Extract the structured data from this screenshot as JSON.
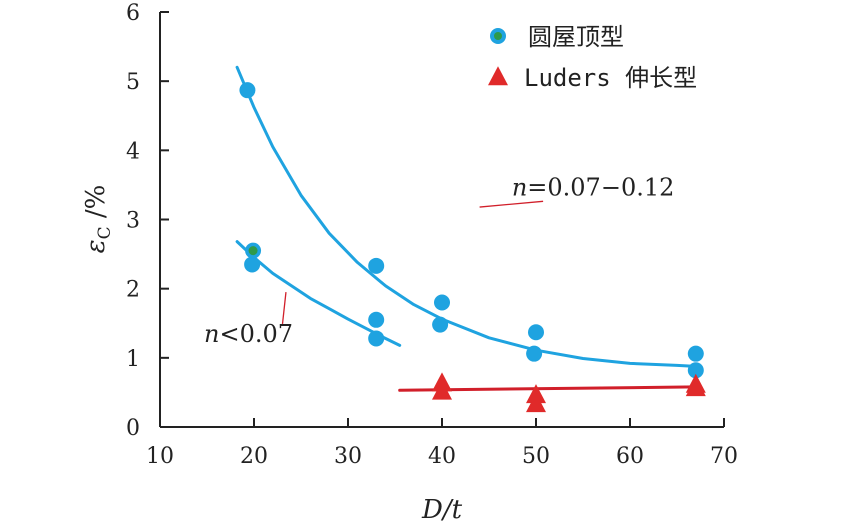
{
  "chart_data": {
    "type": "scatter",
    "xlabel": "D/t",
    "ylabel": "εC /%",
    "xlim": [
      10,
      70
    ],
    "ylim": [
      0,
      6
    ],
    "x_ticks": [
      10,
      20,
      30,
      40,
      50,
      60,
      70
    ],
    "y_ticks": [
      0,
      1,
      2,
      3,
      4,
      5,
      6
    ],
    "grid": false,
    "legend_position": "top-right",
    "colors": {
      "dome": "#1fa3e0",
      "dome_special": "#2e9a4a",
      "luders": "#e02a2a"
    },
    "series": [
      {
        "name": "圆屋顶型",
        "marker": "circle",
        "points": [
          {
            "x": 19.3,
            "y": 4.87
          },
          {
            "x": 19.8,
            "y": 2.35
          },
          {
            "x": 33.0,
            "y": 2.33
          },
          {
            "x": 33.0,
            "y": 1.55
          },
          {
            "x": 33.0,
            "y": 1.28
          },
          {
            "x": 39.8,
            "y": 1.48
          },
          {
            "x": 40.0,
            "y": 1.8
          },
          {
            "x": 49.8,
            "y": 1.06
          },
          {
            "x": 50.0,
            "y": 1.37
          },
          {
            "x": 67.0,
            "y": 1.06
          },
          {
            "x": 67.0,
            "y": 0.82
          }
        ],
        "highlight_points": [
          {
            "x": 19.9,
            "y": 2.55
          }
        ]
      },
      {
        "name": "Luders 伸长型",
        "marker": "triangle",
        "points": [
          {
            "x": 40.0,
            "y": 0.62
          },
          {
            "x": 40.0,
            "y": 0.5
          },
          {
            "x": 50.0,
            "y": 0.45
          },
          {
            "x": 50.0,
            "y": 0.32
          },
          {
            "x": 67.0,
            "y": 0.6
          },
          {
            "x": 67.0,
            "y": 0.55
          }
        ]
      }
    ],
    "fit_curves": [
      {
        "label": "n=0.07−0.12",
        "color": "#1fa3e0",
        "points": [
          [
            18.2,
            5.2
          ],
          [
            20,
            4.62
          ],
          [
            22,
            4.05
          ],
          [
            25,
            3.35
          ],
          [
            28,
            2.8
          ],
          [
            31,
            2.38
          ],
          [
            34,
            2.04
          ],
          [
            37,
            1.77
          ],
          [
            40,
            1.56
          ],
          [
            45,
            1.29
          ],
          [
            50,
            1.11
          ],
          [
            55,
            0.99
          ],
          [
            60,
            0.92
          ],
          [
            65,
            0.89
          ],
          [
            66.5,
            0.88
          ]
        ]
      },
      {
        "label": "n<0.07",
        "color": "#1fa3e0",
        "points": [
          [
            18.2,
            2.68
          ],
          [
            20,
            2.45
          ],
          [
            22,
            2.22
          ],
          [
            24,
            2.04
          ],
          [
            26,
            1.86
          ],
          [
            28,
            1.71
          ],
          [
            30,
            1.56
          ],
          [
            32,
            1.42
          ],
          [
            34,
            1.28
          ],
          [
            35.5,
            1.18
          ]
        ]
      },
      {
        "label": "",
        "color": "#d11f2a",
        "points": [
          [
            35.5,
            0.53
          ],
          [
            67.0,
            0.58
          ]
        ]
      }
    ],
    "annotations": [
      {
        "text_n": "n",
        "text_rest": "=0.07−0.12",
        "anchor": [
          56.5,
          3.35
        ],
        "leader_to": [
          44.0,
          3.18
        ]
      },
      {
        "text_n": "n",
        "text_rest": "<0.07",
        "anchor": [
          17.5,
          1.23
        ],
        "leader_to": [
          23.4,
          1.95
        ]
      }
    ]
  }
}
